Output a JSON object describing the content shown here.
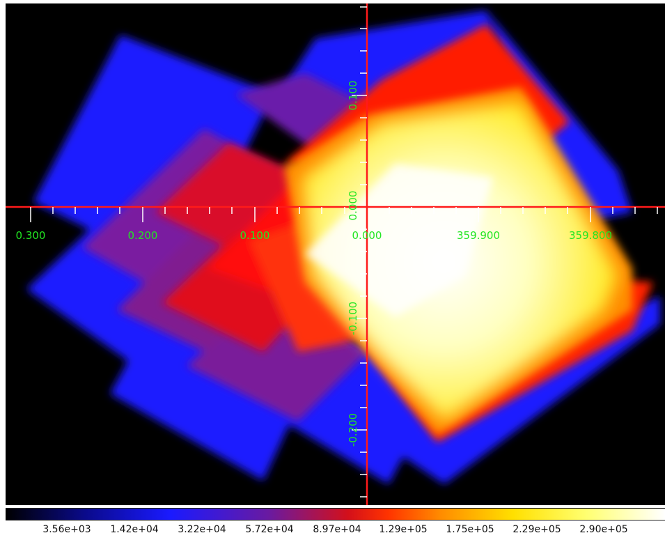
{
  "image": {
    "description_colors": {
      "background": "#000000",
      "cyan_marker": "#ff1a1a",
      "grid_label": "#22e622"
    }
  },
  "axes": {
    "x_labels": [
      "0.300",
      "0.200",
      "0.100",
      "0.000",
      "359.900",
      "359.800"
    ],
    "y_labels": [
      "0.100",
      "0.000",
      "-0.100",
      "-0.200"
    ]
  },
  "colorbar": {
    "colormap": "heat (black-blue-red-yellow-white)",
    "labels": [
      "3.56e+03",
      "1.42e+04",
      "3.22e+04",
      "5.72e+04",
      "8.97e+04",
      "1.29e+05",
      "1.75e+05",
      "2.29e+05",
      "2.90e+05"
    ]
  }
}
